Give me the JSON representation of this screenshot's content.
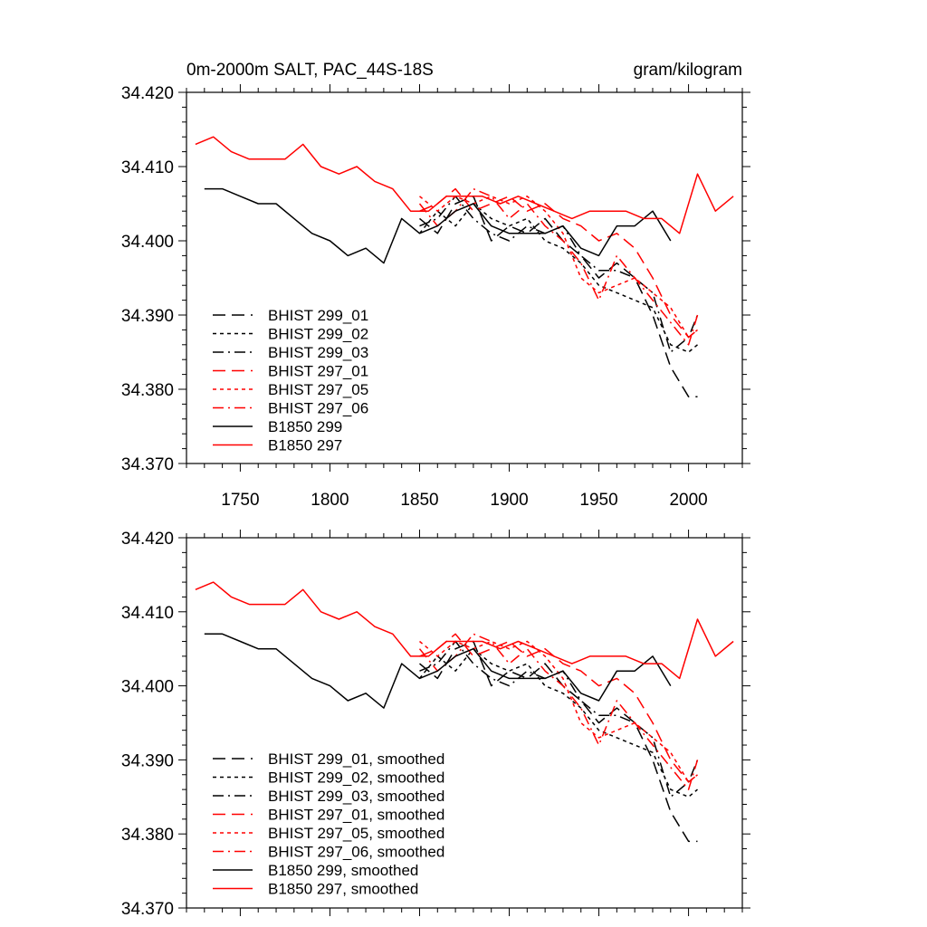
{
  "chart_data": [
    {
      "type": "line",
      "title": "0m-2000m SALT, PAC_44S-18S",
      "units": "gram/kilogram",
      "xlim": [
        1720,
        2030
      ],
      "ylim": [
        34.37,
        34.42
      ],
      "xticks": [
        "1750",
        "1800",
        "1850",
        "1900",
        "1950",
        "2000"
      ],
      "yticks": [
        "34.370",
        "34.380",
        "34.390",
        "34.400",
        "34.410",
        "34.420"
      ],
      "legend_position": "lower-left",
      "series": [
        {
          "name": "BHIST 299_01",
          "color": "#000000",
          "dash": "long-dash",
          "x": [
            1850,
            1860,
            1870,
            1880,
            1890,
            1900,
            1910,
            1920,
            1930,
            1940,
            1950,
            1960,
            1970,
            1980,
            1990,
            2000,
            2005
          ],
          "y": [
            34.403,
            34.401,
            34.405,
            34.406,
            34.4,
            34.402,
            34.401,
            34.403,
            34.4,
            34.398,
            34.395,
            34.397,
            34.395,
            34.39,
            34.383,
            34.379,
            34.379
          ]
        },
        {
          "name": "BHIST 299_02",
          "color": "#000000",
          "dash": "short-dash",
          "x": [
            1850,
            1860,
            1870,
            1880,
            1890,
            1900,
            1910,
            1920,
            1930,
            1940,
            1950,
            1960,
            1970,
            1980,
            1990,
            2000,
            2005
          ],
          "y": [
            34.401,
            34.404,
            34.402,
            34.405,
            34.403,
            34.402,
            34.403,
            34.4,
            34.399,
            34.397,
            34.394,
            34.393,
            34.392,
            34.391,
            34.386,
            34.385,
            34.386
          ]
        },
        {
          "name": "BHIST 299_03",
          "color": "#000000",
          "dash": "dash-dot",
          "x": [
            1850,
            1860,
            1870,
            1880,
            1890,
            1900,
            1910,
            1920,
            1930,
            1940,
            1950,
            1960,
            1970,
            1980,
            1990,
            2000,
            2005
          ],
          "y": [
            34.402,
            34.403,
            34.406,
            34.403,
            34.401,
            34.4,
            34.402,
            34.401,
            34.402,
            34.398,
            34.396,
            34.396,
            34.395,
            34.393,
            34.385,
            34.387,
            34.39
          ]
        },
        {
          "name": "BHIST 297_01",
          "color": "#ff0000",
          "dash": "long-dash",
          "x": [
            1850,
            1860,
            1870,
            1880,
            1890,
            1900,
            1910,
            1920,
            1930,
            1940,
            1950,
            1960,
            1970,
            1980,
            1990,
            2000,
            2005
          ],
          "y": [
            34.404,
            34.405,
            34.407,
            34.404,
            34.405,
            34.406,
            34.404,
            34.405,
            34.403,
            34.402,
            34.4,
            34.401,
            34.399,
            34.395,
            34.39,
            34.387,
            34.388
          ]
        },
        {
          "name": "BHIST 297_05",
          "color": "#ff0000",
          "dash": "short-dash",
          "x": [
            1850,
            1860,
            1870,
            1880,
            1890,
            1900,
            1910,
            1920,
            1930,
            1940,
            1950,
            1960,
            1970,
            1980,
            1990,
            2000,
            2005
          ],
          "y": [
            34.406,
            34.404,
            34.406,
            34.405,
            34.406,
            34.405,
            34.406,
            34.404,
            34.401,
            34.395,
            34.393,
            34.394,
            34.395,
            34.393,
            34.391,
            34.387,
            34.388
          ]
        },
        {
          "name": "BHIST 297_06",
          "color": "#ff0000",
          "dash": "dash-dot",
          "x": [
            1850,
            1860,
            1870,
            1880,
            1890,
            1900,
            1910,
            1920,
            1930,
            1940,
            1950,
            1960,
            1970,
            1980,
            1990,
            2000,
            2005
          ],
          "y": [
            34.405,
            34.402,
            34.404,
            34.407,
            34.406,
            34.403,
            34.405,
            34.402,
            34.4,
            34.397,
            34.392,
            34.398,
            34.395,
            34.392,
            34.389,
            34.386,
            34.39
          ]
        },
        {
          "name": "B1850 299",
          "color": "#000000",
          "dash": "solid",
          "x": [
            1730,
            1740,
            1750,
            1760,
            1770,
            1780,
            1790,
            1800,
            1810,
            1820,
            1830,
            1840,
            1850,
            1860,
            1870,
            1880,
            1890,
            1900,
            1910,
            1920,
            1930,
            1940,
            1950,
            1960,
            1970,
            1980,
            1990
          ],
          "y": [
            34.407,
            34.407,
            34.406,
            34.405,
            34.405,
            34.403,
            34.401,
            34.4,
            34.398,
            34.399,
            34.397,
            34.403,
            34.401,
            34.402,
            34.404,
            34.405,
            34.402,
            34.401,
            34.401,
            34.401,
            34.402,
            34.399,
            34.398,
            34.402,
            34.402,
            34.404,
            34.4
          ]
        },
        {
          "name": "B1850 297",
          "color": "#ff0000",
          "dash": "solid",
          "x": [
            1725,
            1735,
            1745,
            1755,
            1765,
            1775,
            1785,
            1795,
            1805,
            1815,
            1825,
            1835,
            1845,
            1855,
            1865,
            1875,
            1885,
            1895,
            1905,
            1915,
            1925,
            1935,
            1945,
            1955,
            1965,
            1975,
            1985,
            1995,
            2005,
            2015,
            2025
          ],
          "y": [
            34.413,
            34.414,
            34.412,
            34.411,
            34.411,
            34.411,
            34.413,
            34.41,
            34.409,
            34.41,
            34.408,
            34.407,
            34.404,
            34.404,
            34.406,
            34.406,
            34.406,
            34.405,
            34.406,
            34.405,
            34.404,
            34.403,
            34.404,
            34.404,
            34.404,
            34.403,
            34.403,
            34.401,
            34.409,
            34.404,
            34.406
          ]
        }
      ]
    },
    {
      "type": "line",
      "title": "",
      "units": "",
      "xlim": [
        1720,
        2030
      ],
      "ylim": [
        34.37,
        34.42
      ],
      "xticks": [],
      "yticks": [
        "34.370",
        "34.380",
        "34.390",
        "34.400",
        "34.410",
        "34.420"
      ],
      "legend_position": "lower-left",
      "series": [
        {
          "name": "BHIST 299_01, smoothed",
          "color": "#000000",
          "dash": "long-dash",
          "x": [
            1850,
            1860,
            1870,
            1880,
            1890,
            1900,
            1910,
            1920,
            1930,
            1940,
            1950,
            1960,
            1970,
            1980,
            1990,
            2000,
            2005
          ],
          "y": [
            34.403,
            34.401,
            34.405,
            34.406,
            34.4,
            34.402,
            34.401,
            34.403,
            34.4,
            34.398,
            34.395,
            34.397,
            34.395,
            34.39,
            34.383,
            34.379,
            34.379
          ]
        },
        {
          "name": "BHIST 299_02, smoothed",
          "color": "#000000",
          "dash": "short-dash",
          "x": [
            1850,
            1860,
            1870,
            1880,
            1890,
            1900,
            1910,
            1920,
            1930,
            1940,
            1950,
            1960,
            1970,
            1980,
            1990,
            2000,
            2005
          ],
          "y": [
            34.401,
            34.404,
            34.402,
            34.405,
            34.403,
            34.402,
            34.403,
            34.4,
            34.399,
            34.397,
            34.394,
            34.393,
            34.392,
            34.391,
            34.386,
            34.385,
            34.386
          ]
        },
        {
          "name": "BHIST 299_03, smoothed",
          "color": "#000000",
          "dash": "dash-dot",
          "x": [
            1850,
            1860,
            1870,
            1880,
            1890,
            1900,
            1910,
            1920,
            1930,
            1940,
            1950,
            1960,
            1970,
            1980,
            1990,
            2000,
            2005
          ],
          "y": [
            34.402,
            34.403,
            34.406,
            34.403,
            34.401,
            34.4,
            34.402,
            34.401,
            34.402,
            34.398,
            34.396,
            34.396,
            34.395,
            34.393,
            34.385,
            34.387,
            34.39
          ]
        },
        {
          "name": "BHIST 297_01, smoothed",
          "color": "#ff0000",
          "dash": "long-dash",
          "x": [
            1850,
            1860,
            1870,
            1880,
            1890,
            1900,
            1910,
            1920,
            1930,
            1940,
            1950,
            1960,
            1970,
            1980,
            1990,
            2000,
            2005
          ],
          "y": [
            34.404,
            34.405,
            34.407,
            34.404,
            34.405,
            34.406,
            34.404,
            34.405,
            34.403,
            34.402,
            34.4,
            34.401,
            34.399,
            34.395,
            34.39,
            34.387,
            34.388
          ]
        },
        {
          "name": "BHIST 297_05, smoothed",
          "color": "#ff0000",
          "dash": "short-dash",
          "x": [
            1850,
            1860,
            1870,
            1880,
            1890,
            1900,
            1910,
            1920,
            1930,
            1940,
            1950,
            1960,
            1970,
            1980,
            1990,
            2000,
            2005
          ],
          "y": [
            34.406,
            34.404,
            34.406,
            34.405,
            34.406,
            34.405,
            34.406,
            34.404,
            34.401,
            34.395,
            34.393,
            34.394,
            34.395,
            34.393,
            34.391,
            34.387,
            34.388
          ]
        },
        {
          "name": "BHIST 297_06, smoothed",
          "color": "#ff0000",
          "dash": "dash-dot",
          "x": [
            1850,
            1860,
            1870,
            1880,
            1890,
            1900,
            1910,
            1920,
            1930,
            1940,
            1950,
            1960,
            1970,
            1980,
            1990,
            2000,
            2005
          ],
          "y": [
            34.405,
            34.402,
            34.404,
            34.407,
            34.406,
            34.403,
            34.405,
            34.402,
            34.4,
            34.397,
            34.392,
            34.398,
            34.395,
            34.392,
            34.389,
            34.386,
            34.39
          ]
        },
        {
          "name": "B1850 299, smoothed",
          "color": "#000000",
          "dash": "solid",
          "x": [
            1730,
            1740,
            1750,
            1760,
            1770,
            1780,
            1790,
            1800,
            1810,
            1820,
            1830,
            1840,
            1850,
            1860,
            1870,
            1880,
            1890,
            1900,
            1910,
            1920,
            1930,
            1940,
            1950,
            1960,
            1970,
            1980,
            1990
          ],
          "y": [
            34.407,
            34.407,
            34.406,
            34.405,
            34.405,
            34.403,
            34.401,
            34.4,
            34.398,
            34.399,
            34.397,
            34.403,
            34.401,
            34.402,
            34.404,
            34.405,
            34.402,
            34.401,
            34.401,
            34.401,
            34.402,
            34.399,
            34.398,
            34.402,
            34.402,
            34.404,
            34.4
          ]
        },
        {
          "name": "B1850 297, smoothed",
          "color": "#ff0000",
          "dash": "solid",
          "x": [
            1725,
            1735,
            1745,
            1755,
            1765,
            1775,
            1785,
            1795,
            1805,
            1815,
            1825,
            1835,
            1845,
            1855,
            1865,
            1875,
            1885,
            1895,
            1905,
            1915,
            1925,
            1935,
            1945,
            1955,
            1965,
            1975,
            1985,
            1995,
            2005,
            2015,
            2025
          ],
          "y": [
            34.413,
            34.414,
            34.412,
            34.411,
            34.411,
            34.411,
            34.413,
            34.41,
            34.409,
            34.41,
            34.408,
            34.407,
            34.404,
            34.404,
            34.406,
            34.406,
            34.406,
            34.405,
            34.406,
            34.405,
            34.404,
            34.403,
            34.404,
            34.404,
            34.404,
            34.403,
            34.403,
            34.401,
            34.409,
            34.404,
            34.406
          ]
        }
      ]
    }
  ]
}
